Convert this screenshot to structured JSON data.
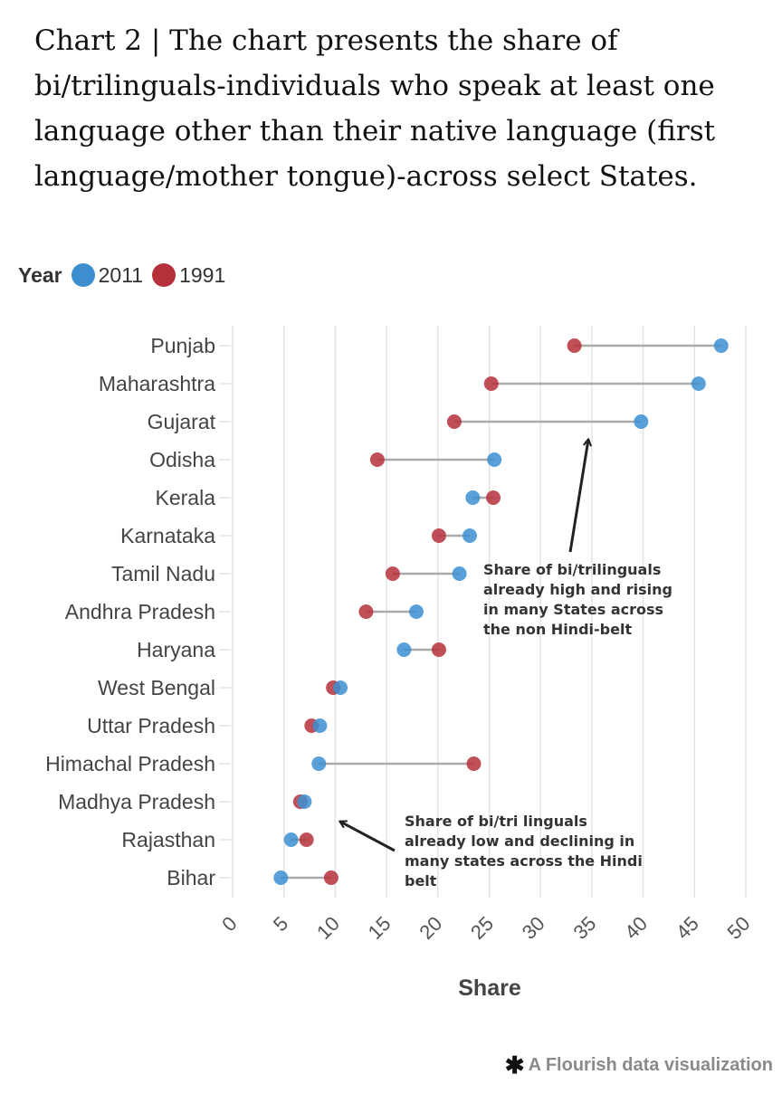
{
  "title": "Chart 2 | The chart presents the share of bi/trilinguals-individuals who speak at least one language other than their native language (first language/mother tongue)-across select States.",
  "legend": {
    "title": "Year",
    "items": [
      {
        "label": "2011",
        "color": "#3d8fd1"
      },
      {
        "label": "1991",
        "color": "#b5303b"
      }
    ]
  },
  "chart_data": {
    "type": "dumbbell",
    "categories": [
      "Punjab",
      "Maharashtra",
      "Gujarat",
      "Odisha",
      "Kerala",
      "Karnataka",
      "Tamil Nadu",
      "Andhra Pradesh",
      "Haryana",
      "West Bengal",
      "Uttar Pradesh",
      "Himachal Pradesh",
      "Madhya Pradesh",
      "Rajasthan",
      "Bihar"
    ],
    "series": [
      {
        "name": "2011",
        "color": "#3d8fd1",
        "values": [
          47.6,
          45.4,
          39.8,
          25.5,
          23.4,
          23.1,
          22.1,
          17.9,
          16.7,
          10.5,
          8.5,
          8.4,
          7.0,
          5.7,
          4.7
        ]
      },
      {
        "name": "1991",
        "color": "#b5303b",
        "values": [
          33.3,
          25.2,
          21.6,
          14.1,
          25.4,
          20.1,
          15.6,
          13.0,
          20.1,
          9.8,
          7.7,
          23.5,
          6.6,
          7.2,
          9.6
        ]
      }
    ],
    "xlabel": "Share",
    "xlim": [
      0,
      50
    ],
    "xticks": [
      "0",
      "5",
      "10",
      "15",
      "20",
      "25",
      "30",
      "35",
      "40",
      "45",
      "50"
    ],
    "grid": true,
    "legend_position": "top-left",
    "annotations": [
      {
        "text": "Share of bi/trilinguals already high and rising in many States across the non Hindi-belt",
        "lines": [
          "Share of bi/trilinguals",
          "already high and rising",
          "in many States across",
          "the non Hindi-belt"
        ]
      },
      {
        "text": "Share of bi/tri linguals already low and declining in many states across the Hindi belt",
        "lines": [
          "Share of bi/tri linguals",
          "already low and declining in",
          "many states across the Hindi",
          "belt"
        ]
      }
    ]
  },
  "credit": {
    "icon": "flourish-asterisk-icon",
    "text": "A Flourish data visualization"
  }
}
